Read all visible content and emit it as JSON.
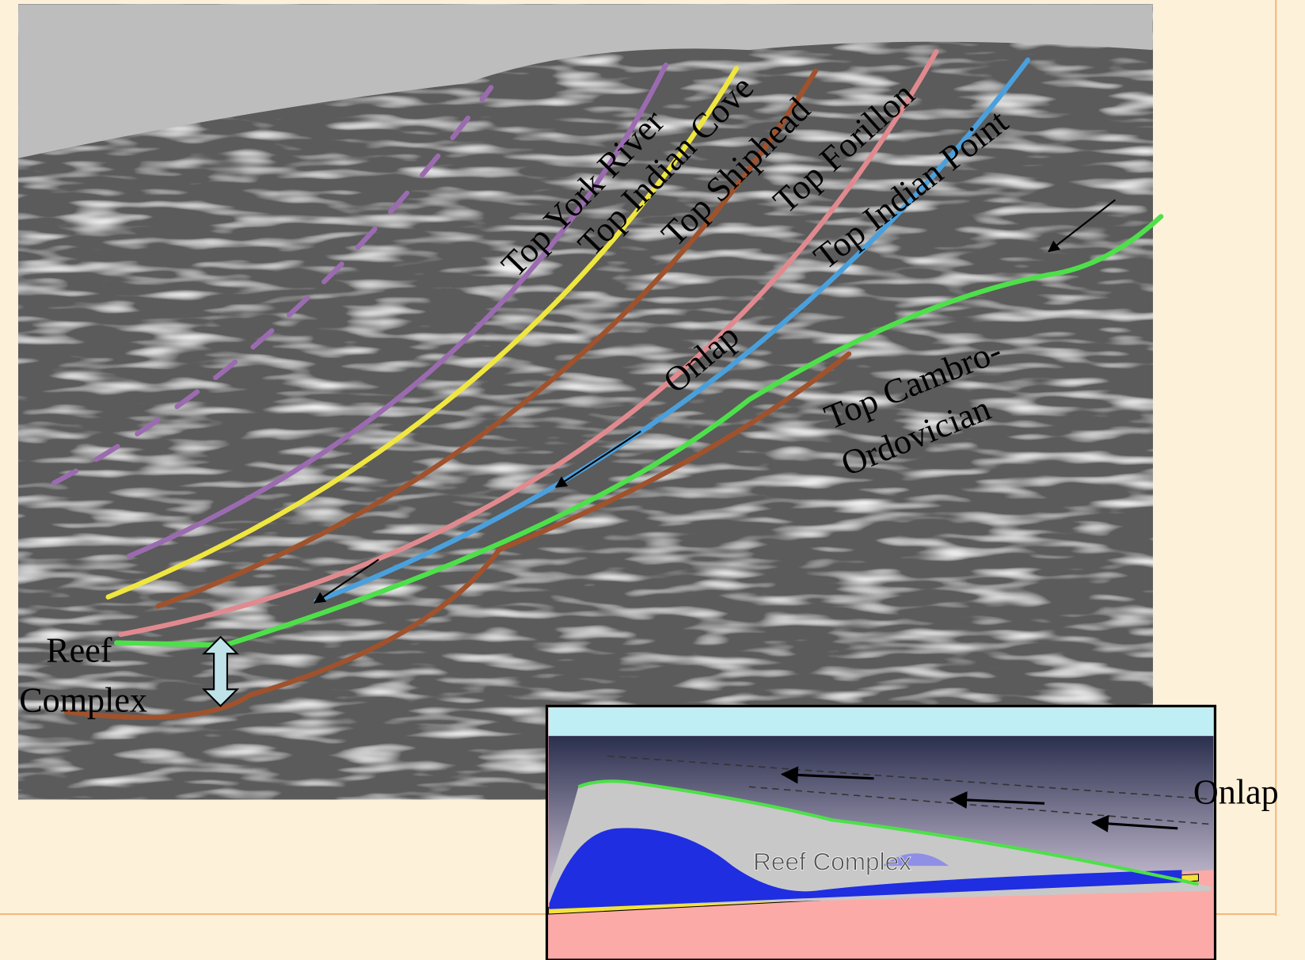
{
  "seismic": {
    "horizons": [
      {
        "label": "Top York River"
      },
      {
        "label": "Top Indian Cove"
      },
      {
        "label": "Top Shiphead"
      },
      {
        "label": "Top Forillon"
      },
      {
        "label": "Top Indian Point"
      }
    ],
    "onlap_label": "Onlap",
    "cambro_label": [
      "Top Cambro-",
      "Ordovician"
    ],
    "reef_label": [
      "Reef",
      "Complex"
    ]
  },
  "inset": {
    "reef_label": "Reef  Complex",
    "onlap_label": "Onlap"
  }
}
